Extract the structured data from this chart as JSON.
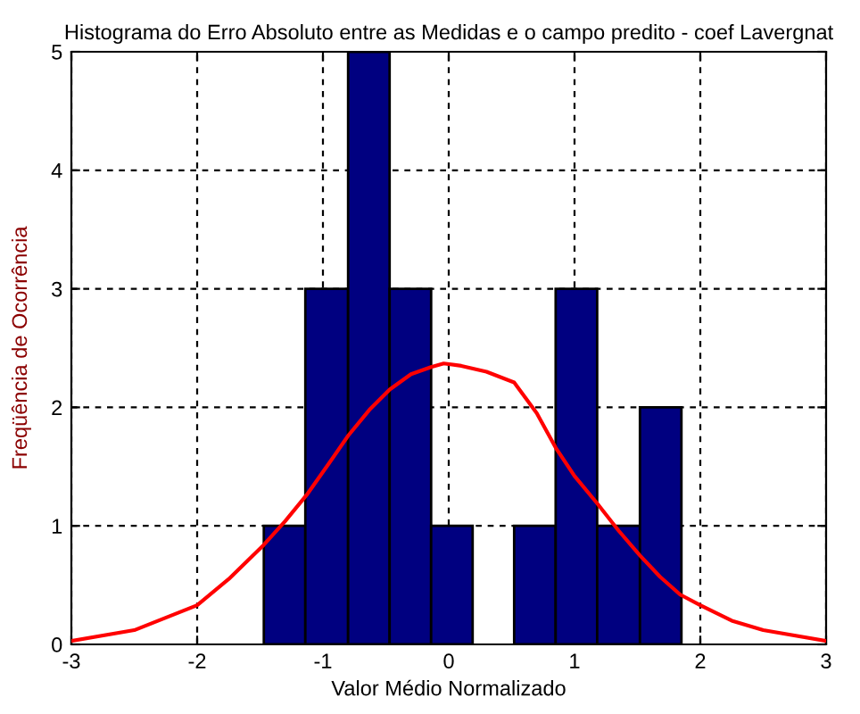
{
  "chart_data": {
    "type": "histogram",
    "title": "Histograma do Erro Absoluto entre as Medidas e o campo predito - coef Lavergnat",
    "xlabel": "Valor Médio Normalizado",
    "ylabel": "Freqüência de Ocorrência",
    "bins": [
      -1.47,
      -1.14,
      -0.8,
      -0.47,
      -0.14,
      0.19,
      0.52,
      0.85,
      1.18,
      1.52,
      1.85
    ],
    "values": [
      1,
      3,
      5,
      3,
      1,
      0,
      1,
      3,
      1,
      2
    ],
    "color": "#000080",
    "series": [
      {
        "type": "line",
        "color": "#ff0000",
        "x": [
          -3,
          -2.5,
          -2,
          -1.75,
          -1.47,
          -1.3,
          -1.13,
          -0.95,
          -0.8,
          -0.63,
          -0.47,
          -0.3,
          -0.14,
          -0.04,
          0.1,
          0.3,
          0.52,
          0.7,
          0.85,
          1.0,
          1.18,
          1.35,
          1.52,
          1.68,
          1.84,
          2,
          2.25,
          2.5,
          3
        ],
        "values": [
          0.03,
          0.12,
          0.33,
          0.55,
          0.84,
          1.04,
          1.26,
          1.53,
          1.76,
          1.98,
          2.15,
          2.28,
          2.34,
          2.37,
          2.35,
          2.3,
          2.21,
          1.95,
          1.66,
          1.42,
          1.19,
          0.96,
          0.75,
          0.57,
          0.42,
          0.33,
          0.2,
          0.12,
          0.03
        ]
      }
    ],
    "xlim": [
      -3,
      3
    ],
    "xticks": [
      -3,
      -2,
      -1,
      0,
      1,
      2,
      3
    ],
    "ylim": [
      0,
      5
    ],
    "yticks": [
      0,
      1,
      2,
      3,
      4,
      5
    ],
    "grid": true,
    "line_style": "solid",
    "marker": "none"
  }
}
